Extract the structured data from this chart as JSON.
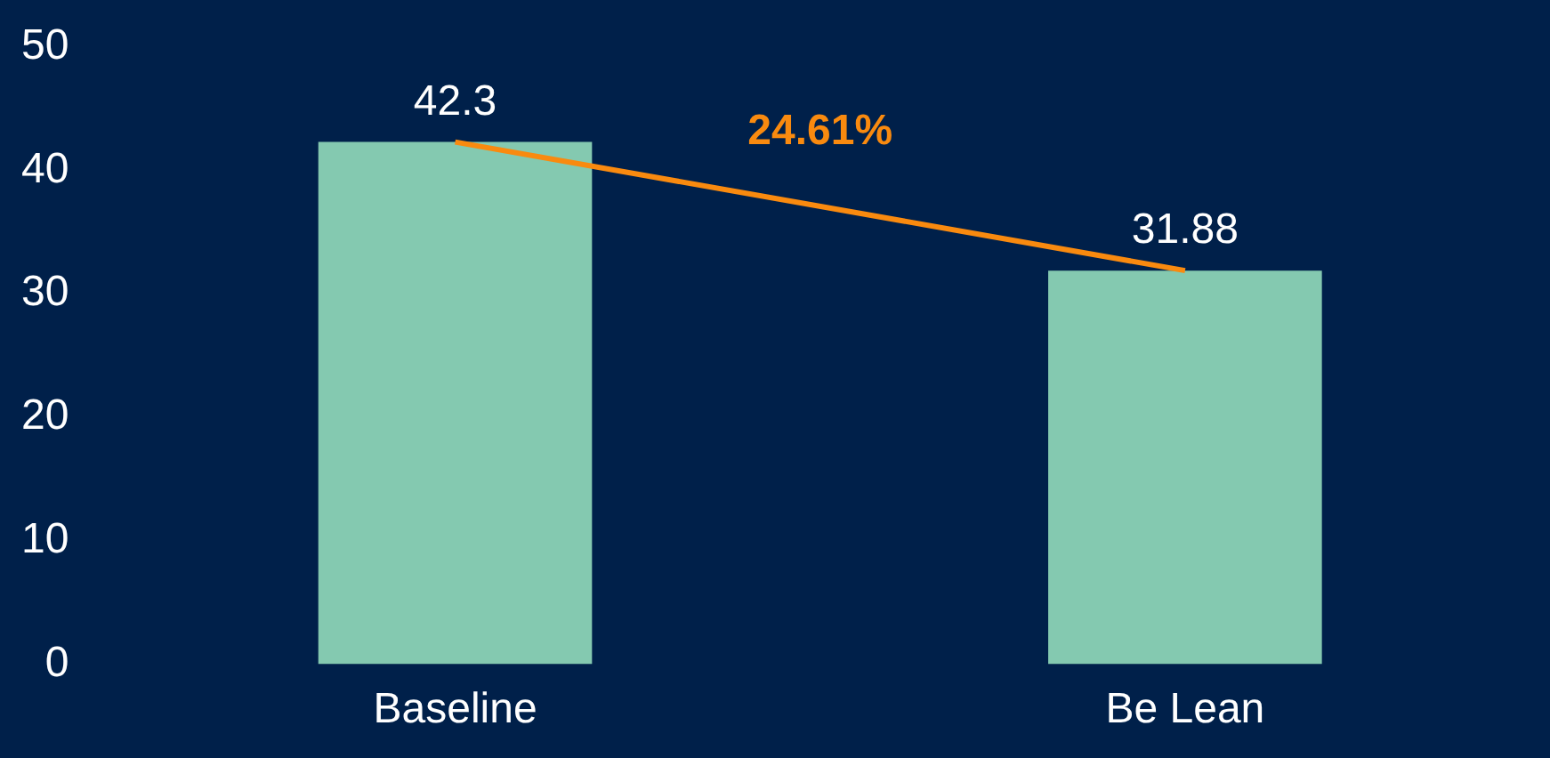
{
  "chart_data": {
    "type": "bar",
    "categories": [
      "Baseline",
      "Be Lean"
    ],
    "series": [
      {
        "color": "#84c9b0",
        "values": [
          42.3,
          31.88
        ],
        "value_labels": [
          "42.3",
          "31.88"
        ]
      },
      {
        "type": "line",
        "color": "#f98a0f",
        "values": [
          42.3,
          31.88
        ],
        "marker": "none",
        "line_style": "solid"
      }
    ],
    "annotations": [
      "24.61%"
    ],
    "ylim": [
      0,
      50
    ],
    "yticks": [
      0,
      10,
      20,
      30,
      40,
      50
    ],
    "grid": false,
    "legend": false
  }
}
